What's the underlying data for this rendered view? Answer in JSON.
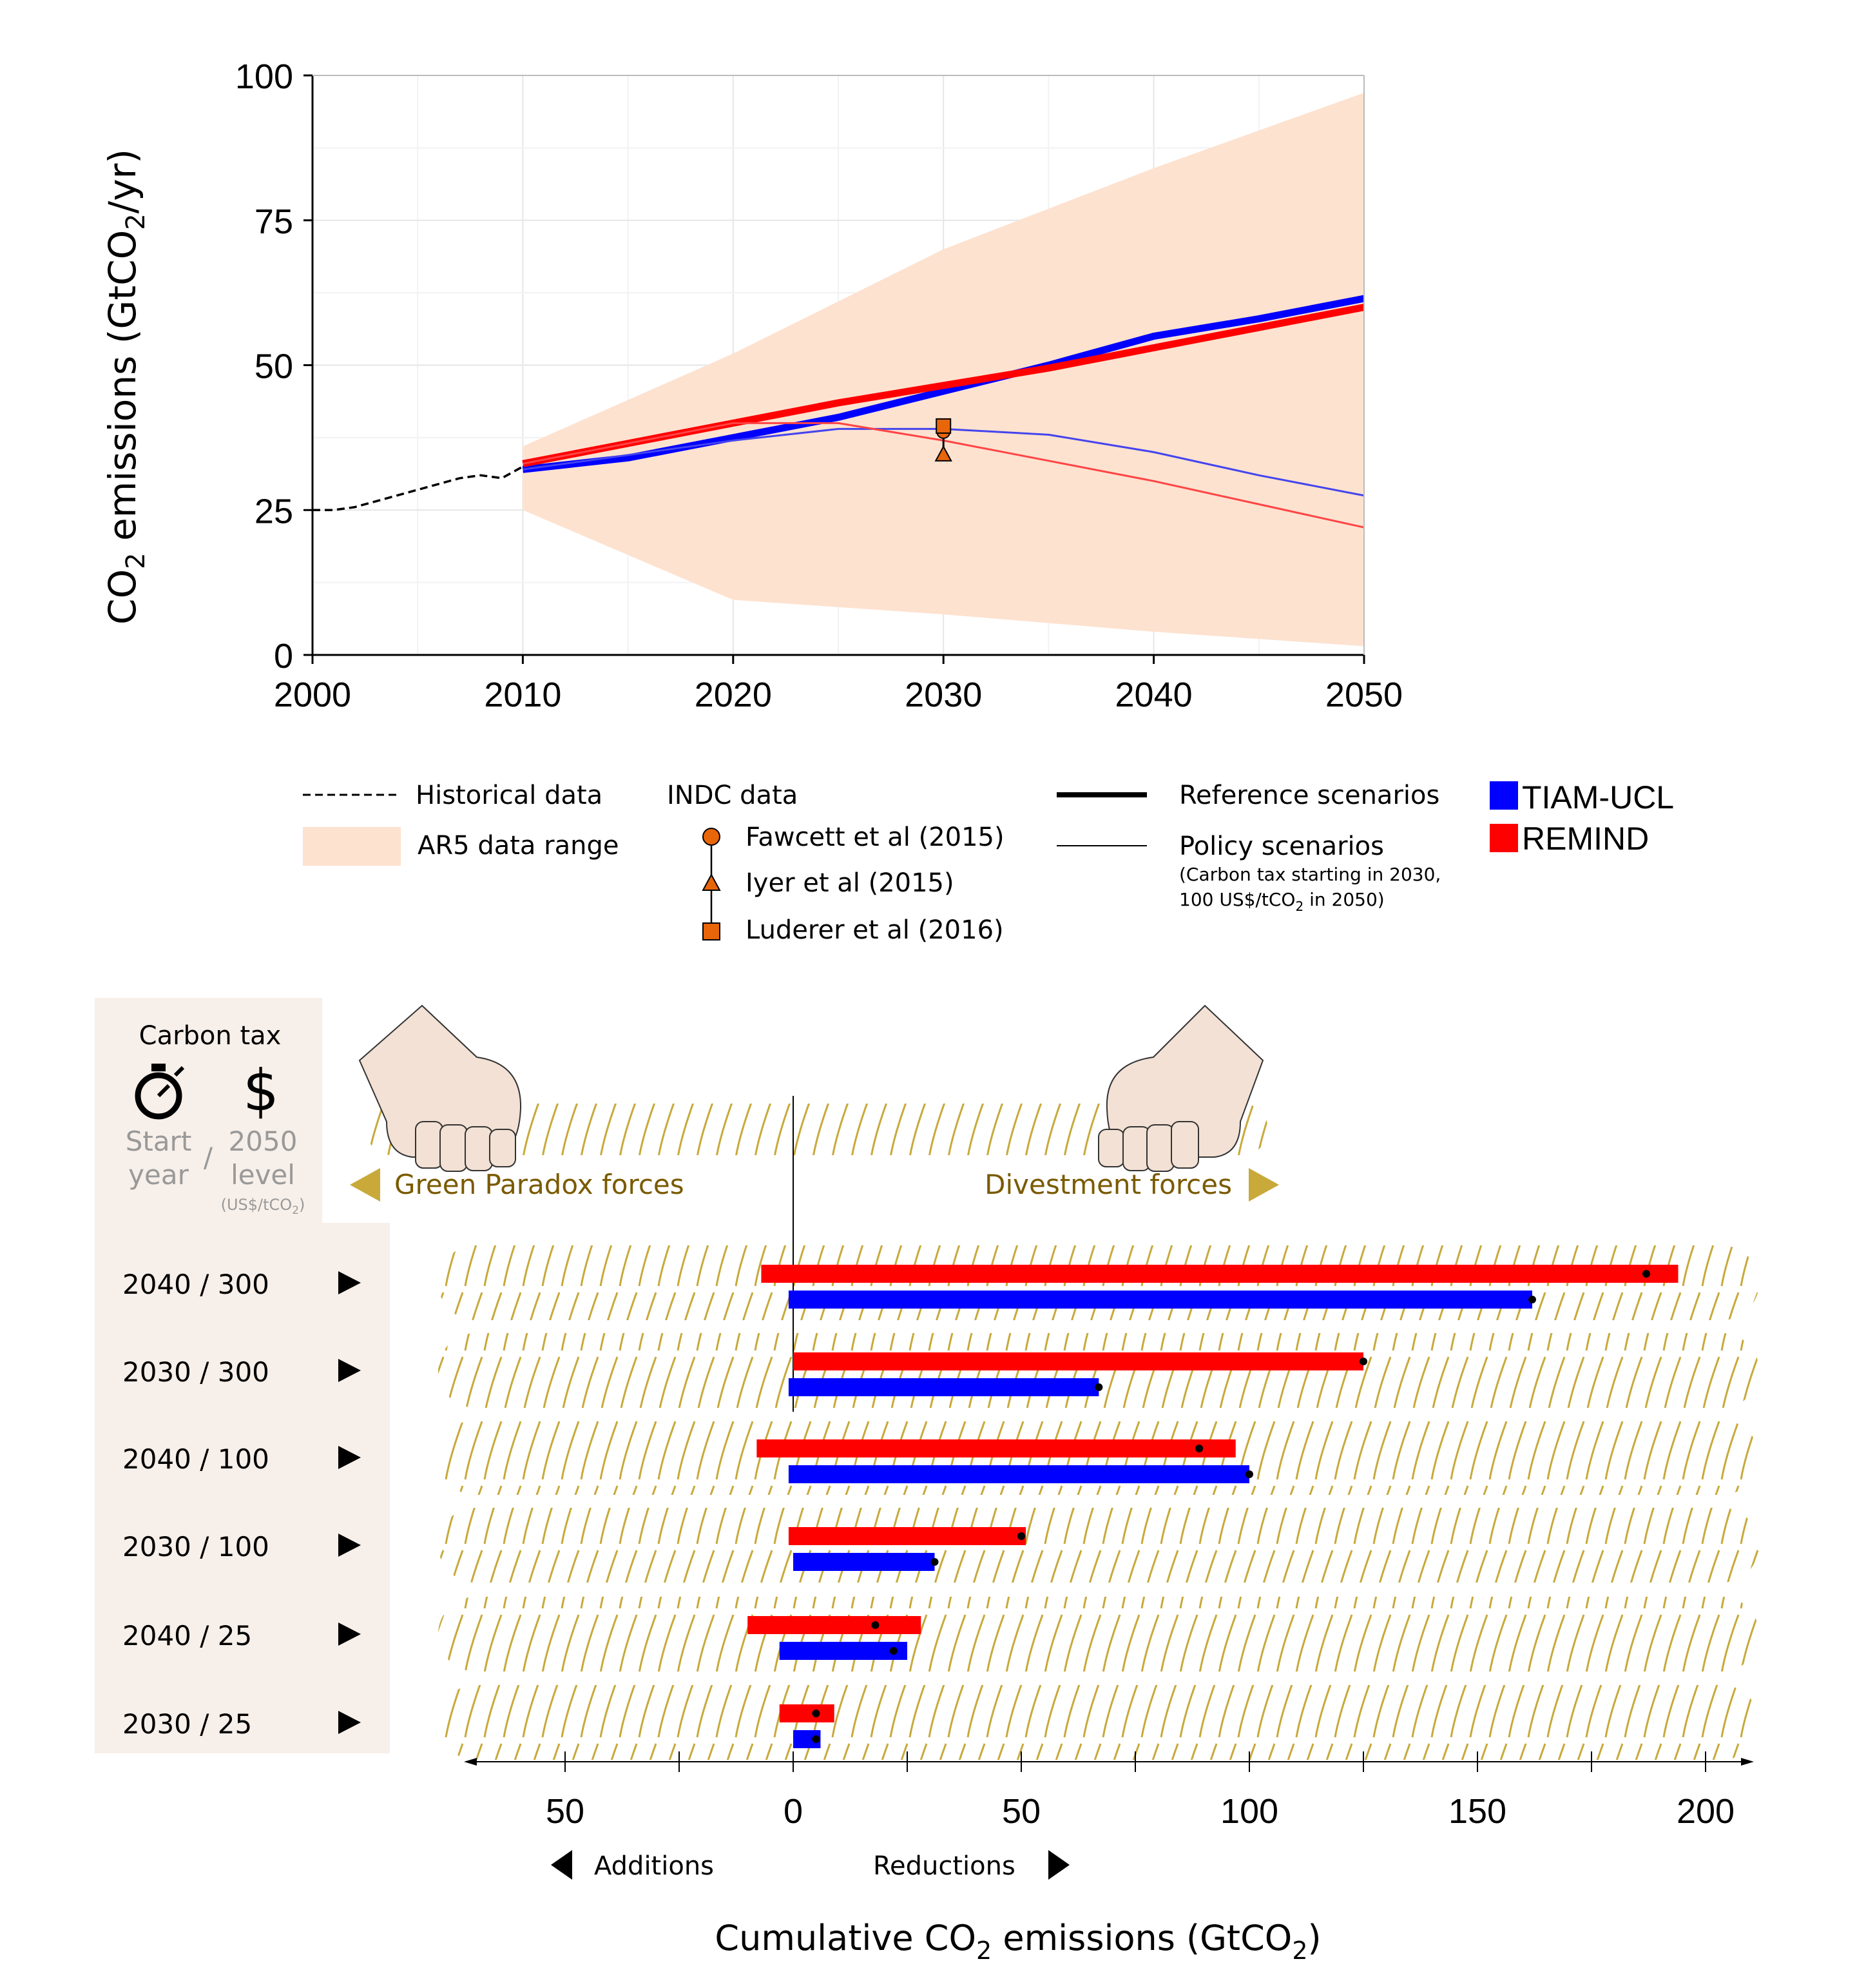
{
  "chart_data": [
    {
      "type": "line",
      "ylabel_main": "CO",
      "ylabel_sub": "2",
      "ylabel_rest": " emissions (GtCO",
      "ylabel_sub2": "2",
      "ylabel_end": "/yr)",
      "xlim": [
        2000,
        2050
      ],
      "ylim": [
        0,
        100
      ],
      "x_ticks": [
        "2000",
        "2010",
        "2020",
        "2030",
        "2040",
        "2050"
      ],
      "y_ticks": [
        "0",
        "25",
        "50",
        "75",
        "100"
      ],
      "grid": true,
      "series": [
        {
          "name": "Historical data",
          "style": "dashed",
          "color": "#000000",
          "x": [
            2000,
            2001,
            2002,
            2003,
            2004,
            2005,
            2006,
            2007,
            2008,
            2009,
            2010
          ],
          "y": [
            25,
            25,
            25.5,
            26.5,
            27.5,
            28.5,
            29.5,
            30.5,
            31.0,
            30.5,
            32.5
          ]
        },
        {
          "name": "AR5 data range",
          "style": "band",
          "color": "#fde2d0",
          "x": [
            2010,
            2020,
            2030,
            2040,
            2050
          ],
          "lower": [
            25,
            9.5,
            7,
            4,
            1.5
          ],
          "upper": [
            36,
            52,
            70,
            84,
            97
          ]
        },
        {
          "name": "TIAM-UCL reference",
          "style": "thick",
          "color": "#0000ff",
          "x": [
            2010,
            2015,
            2020,
            2025,
            2030,
            2035,
            2040,
            2045,
            2050
          ],
          "y": [
            32.0,
            34.0,
            37.5,
            41.0,
            45.5,
            50.0,
            55.0,
            58.0,
            61.5
          ]
        },
        {
          "name": "REMIND reference",
          "style": "thick",
          "color": "#ff0000",
          "x": [
            2010,
            2015,
            2020,
            2025,
            2030,
            2035,
            2040,
            2045,
            2050
          ],
          "y": [
            33.0,
            36.5,
            40.0,
            43.5,
            46.5,
            49.5,
            53.0,
            56.5,
            60.0
          ]
        },
        {
          "name": "TIAM-UCL policy",
          "style": "thin",
          "color": "#4444ee",
          "x": [
            2010,
            2015,
            2020,
            2025,
            2030,
            2035,
            2040,
            2045,
            2050
          ],
          "y": [
            32.0,
            34.5,
            37.0,
            39.0,
            39.0,
            38.0,
            35.0,
            31.0,
            27.5
          ]
        },
        {
          "name": "REMIND policy",
          "style": "thin",
          "color": "#ff4444",
          "x": [
            2010,
            2015,
            2020,
            2025,
            2030,
            2035,
            2040,
            2045,
            2050
          ],
          "y": [
            33.0,
            36.5,
            40.0,
            40.0,
            37.0,
            33.5,
            30.0,
            26.0,
            22.0
          ]
        }
      ],
      "indc_points": [
        {
          "name": "Fawcett et al (2015)",
          "shape": "circle",
          "x": 2030,
          "y": 38.5
        },
        {
          "name": "Iyer et al (2015)",
          "shape": "triangle",
          "x": 2030,
          "y": 34.5
        },
        {
          "name": "Luderer et al (2016)",
          "shape": "square",
          "x": 2030,
          "y": 39.5
        }
      ]
    },
    {
      "type": "bar",
      "orientation": "horizontal",
      "title_main": "Cumulative CO",
      "title_sub": "2",
      "title_rest": " emissions (GtCO",
      "title_sub2": "2",
      "title_end": ")",
      "xlim": [
        -70,
        210
      ],
      "x_ticks": [
        "50",
        "0",
        "50",
        "100",
        "150",
        "200"
      ],
      "x_tick_values": [
        -50,
        0,
        50,
        100,
        150,
        200
      ],
      "categories": [
        "2040 / 300",
        "2030 / 300",
        "2040 / 100",
        "2030 / 100",
        "2040 / 25",
        "2030 / 25"
      ],
      "series": [
        {
          "name": "REMIND",
          "color": "#ff0000",
          "start": [
            -7,
            0,
            -8,
            -1,
            -10,
            -3
          ],
          "end": [
            194,
            125,
            97,
            51,
            28,
            9
          ],
          "net": [
            187,
            125,
            89,
            50,
            18,
            5
          ]
        },
        {
          "name": "TIAM-UCL",
          "color": "#0000ff",
          "start": [
            -1,
            -1,
            -1,
            0,
            -3,
            0
          ],
          "end": [
            162,
            67,
            100,
            31,
            25,
            6
          ],
          "net": [
            162,
            67,
            100,
            31,
            22,
            5
          ]
        }
      ]
    }
  ],
  "legend": {
    "historical": "Historical data",
    "ar5": "AR5 data range",
    "indc_title": "INDC data",
    "fawcett": "Fawcett et al (2015)",
    "iyer": "Iyer et al (2015)",
    "luderer": "Luderer et al (2016)",
    "reference": "Reference scenarios",
    "policy": "Policy scenarios",
    "policy_note1": "(Carbon tax starting in 2030,",
    "policy_note2a": "100 US$/tCO",
    "policy_note2b": "2",
    "policy_note2c": " in 2050)",
    "tiam": "TIAM-UCL",
    "remind": "REMIND"
  },
  "panel": {
    "carbon_tax": "Carbon tax",
    "start_year_1": "Start",
    "start_year_2": "year",
    "slash": "/",
    "level_1": "2050",
    "level_2": "level",
    "units_a": "(US$/tCO",
    "units_b": "2",
    "units_c": ")",
    "dollar": "$",
    "stopwatch": "stopwatch-icon"
  },
  "forces": {
    "left": "Green Paradox forces",
    "right": "Divestment forces",
    "rope_color": "#c8a93a",
    "label_color": "#7a5a00"
  },
  "bottom_labels": {
    "additions": "Additions",
    "reductions": "Reductions"
  }
}
